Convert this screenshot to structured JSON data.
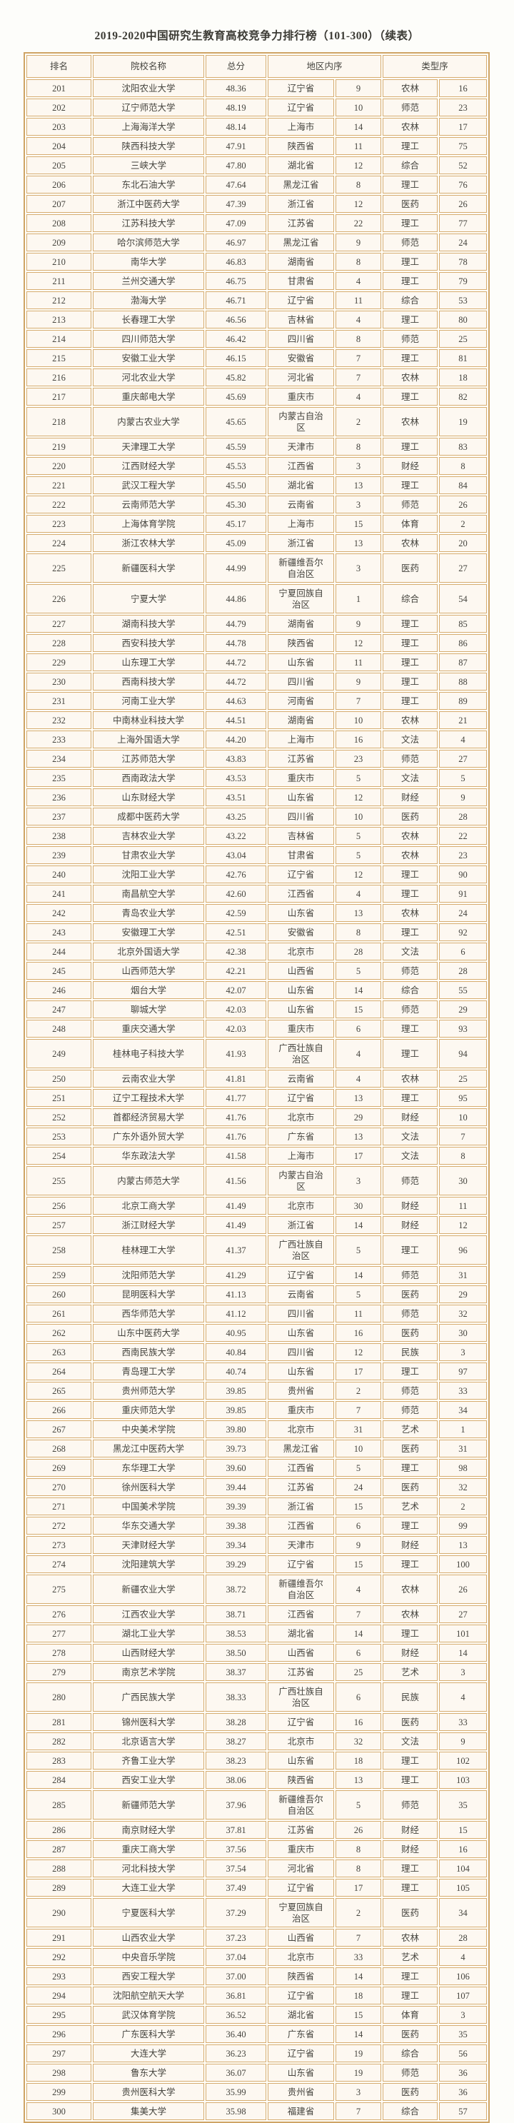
{
  "title": "2019-2020中国研究生教育高校竞争力排行榜（101-300）（续表）",
  "colors": {
    "table_border": "#cfa465",
    "cell_border": "#d6ac70",
    "cell_background": "#fdf8f1",
    "text": "#45443e"
  },
  "header": {
    "rank": "排名",
    "name": "院校名称",
    "score": "总分",
    "region_order": "地区内序",
    "type_order": "类型序"
  },
  "rows": [
    {
      "rank": "201",
      "name": "沈阳农业大学",
      "score": "48.36",
      "region": "辽宁省",
      "region_rank": "9",
      "type": "农林",
      "type_rank": "16"
    },
    {
      "rank": "202",
      "name": "辽宁师范大学",
      "score": "48.19",
      "region": "辽宁省",
      "region_rank": "10",
      "type": "师范",
      "type_rank": "23"
    },
    {
      "rank": "203",
      "name": "上海海洋大学",
      "score": "48.14",
      "region": "上海市",
      "region_rank": "14",
      "type": "农林",
      "type_rank": "17"
    },
    {
      "rank": "204",
      "name": "陕西科技大学",
      "score": "47.91",
      "region": "陕西省",
      "region_rank": "11",
      "type": "理工",
      "type_rank": "75"
    },
    {
      "rank": "205",
      "name": "三峡大学",
      "score": "47.80",
      "region": "湖北省",
      "region_rank": "12",
      "type": "综合",
      "type_rank": "52"
    },
    {
      "rank": "206",
      "name": "东北石油大学",
      "score": "47.64",
      "region": "黑龙江省",
      "region_rank": "8",
      "type": "理工",
      "type_rank": "76"
    },
    {
      "rank": "207",
      "name": "浙江中医药大学",
      "score": "47.39",
      "region": "浙江省",
      "region_rank": "12",
      "type": "医药",
      "type_rank": "26"
    },
    {
      "rank": "208",
      "name": "江苏科技大学",
      "score": "47.09",
      "region": "江苏省",
      "region_rank": "22",
      "type": "理工",
      "type_rank": "77"
    },
    {
      "rank": "209",
      "name": "哈尔滨师范大学",
      "score": "46.97",
      "region": "黑龙江省",
      "region_rank": "9",
      "type": "师范",
      "type_rank": "24"
    },
    {
      "rank": "210",
      "name": "南华大学",
      "score": "46.83",
      "region": "湖南省",
      "region_rank": "8",
      "type": "理工",
      "type_rank": "78"
    },
    {
      "rank": "211",
      "name": "兰州交通大学",
      "score": "46.75",
      "region": "甘肃省",
      "region_rank": "4",
      "type": "理工",
      "type_rank": "79"
    },
    {
      "rank": "212",
      "name": "渤海大学",
      "score": "46.71",
      "region": "辽宁省",
      "region_rank": "11",
      "type": "综合",
      "type_rank": "53"
    },
    {
      "rank": "213",
      "name": "长春理工大学",
      "score": "46.56",
      "region": "吉林省",
      "region_rank": "4",
      "type": "理工",
      "type_rank": "80"
    },
    {
      "rank": "214",
      "name": "四川师范大学",
      "score": "46.42",
      "region": "四川省",
      "region_rank": "8",
      "type": "师范",
      "type_rank": "25"
    },
    {
      "rank": "215",
      "name": "安徽工业大学",
      "score": "46.15",
      "region": "安徽省",
      "region_rank": "7",
      "type": "理工",
      "type_rank": "81"
    },
    {
      "rank": "216",
      "name": "河北农业大学",
      "score": "45.82",
      "region": "河北省",
      "region_rank": "7",
      "type": "农林",
      "type_rank": "18"
    },
    {
      "rank": "217",
      "name": "重庆邮电大学",
      "score": "45.69",
      "region": "重庆市",
      "region_rank": "4",
      "type": "理工",
      "type_rank": "82"
    },
    {
      "rank": "218",
      "name": "内蒙古农业大学",
      "score": "45.65",
      "region": "内蒙古自治区",
      "region_rank": "2",
      "type": "农林",
      "type_rank": "19"
    },
    {
      "rank": "219",
      "name": "天津理工大学",
      "score": "45.59",
      "region": "天津市",
      "region_rank": "8",
      "type": "理工",
      "type_rank": "83"
    },
    {
      "rank": "220",
      "name": "江西财经大学",
      "score": "45.53",
      "region": "江西省",
      "region_rank": "3",
      "type": "财经",
      "type_rank": "8"
    },
    {
      "rank": "221",
      "name": "武汉工程大学",
      "score": "45.50",
      "region": "湖北省",
      "region_rank": "13",
      "type": "理工",
      "type_rank": "84"
    },
    {
      "rank": "222",
      "name": "云南师范大学",
      "score": "45.30",
      "region": "云南省",
      "region_rank": "3",
      "type": "师范",
      "type_rank": "26"
    },
    {
      "rank": "223",
      "name": "上海体育学院",
      "score": "45.17",
      "region": "上海市",
      "region_rank": "15",
      "type": "体育",
      "type_rank": "2"
    },
    {
      "rank": "224",
      "name": "浙江农林大学",
      "score": "45.09",
      "region": "浙江省",
      "region_rank": "13",
      "type": "农林",
      "type_rank": "20"
    },
    {
      "rank": "225",
      "name": "新疆医科大学",
      "score": "44.99",
      "region": "新疆维吾尔自治区",
      "region_rank": "3",
      "type": "医药",
      "type_rank": "27"
    },
    {
      "rank": "226",
      "name": "宁夏大学",
      "score": "44.86",
      "region": "宁夏回族自治区",
      "region_rank": "1",
      "type": "综合",
      "type_rank": "54"
    },
    {
      "rank": "227",
      "name": "湖南科技大学",
      "score": "44.79",
      "region": "湖南省",
      "region_rank": "9",
      "type": "理工",
      "type_rank": "85"
    },
    {
      "rank": "228",
      "name": "西安科技大学",
      "score": "44.78",
      "region": "陕西省",
      "region_rank": "12",
      "type": "理工",
      "type_rank": "86"
    },
    {
      "rank": "229",
      "name": "山东理工大学",
      "score": "44.72",
      "region": "山东省",
      "region_rank": "11",
      "type": "理工",
      "type_rank": "87"
    },
    {
      "rank": "230",
      "name": "西南科技大学",
      "score": "44.72",
      "region": "四川省",
      "region_rank": "9",
      "type": "理工",
      "type_rank": "88"
    },
    {
      "rank": "231",
      "name": "河南工业大学",
      "score": "44.63",
      "region": "河南省",
      "region_rank": "7",
      "type": "理工",
      "type_rank": "89"
    },
    {
      "rank": "232",
      "name": "中南林业科技大学",
      "score": "44.51",
      "region": "湖南省",
      "region_rank": "10",
      "type": "农林",
      "type_rank": "21"
    },
    {
      "rank": "233",
      "name": "上海外国语大学",
      "score": "44.20",
      "region": "上海市",
      "region_rank": "16",
      "type": "文法",
      "type_rank": "4"
    },
    {
      "rank": "234",
      "name": "江苏师范大学",
      "score": "43.83",
      "region": "江苏省",
      "region_rank": "23",
      "type": "师范",
      "type_rank": "27"
    },
    {
      "rank": "235",
      "name": "西南政法大学",
      "score": "43.53",
      "region": "重庆市",
      "region_rank": "5",
      "type": "文法",
      "type_rank": "5"
    },
    {
      "rank": "236",
      "name": "山东财经大学",
      "score": "43.51",
      "region": "山东省",
      "region_rank": "12",
      "type": "财经",
      "type_rank": "9"
    },
    {
      "rank": "237",
      "name": "成都中医药大学",
      "score": "43.25",
      "region": "四川省",
      "region_rank": "10",
      "type": "医药",
      "type_rank": "28"
    },
    {
      "rank": "238",
      "name": "吉林农业大学",
      "score": "43.22",
      "region": "吉林省",
      "region_rank": "5",
      "type": "农林",
      "type_rank": "22"
    },
    {
      "rank": "239",
      "name": "甘肃农业大学",
      "score": "43.04",
      "region": "甘肃省",
      "region_rank": "5",
      "type": "农林",
      "type_rank": "23"
    },
    {
      "rank": "240",
      "name": "沈阳工业大学",
      "score": "42.76",
      "region": "辽宁省",
      "region_rank": "12",
      "type": "理工",
      "type_rank": "90"
    },
    {
      "rank": "241",
      "name": "南昌航空大学",
      "score": "42.60",
      "region": "江西省",
      "region_rank": "4",
      "type": "理工",
      "type_rank": "91"
    },
    {
      "rank": "242",
      "name": "青岛农业大学",
      "score": "42.59",
      "region": "山东省",
      "region_rank": "13",
      "type": "农林",
      "type_rank": "24"
    },
    {
      "rank": "243",
      "name": "安徽理工大学",
      "score": "42.51",
      "region": "安徽省",
      "region_rank": "8",
      "type": "理工",
      "type_rank": "92"
    },
    {
      "rank": "244",
      "name": "北京外国语大学",
      "score": "42.38",
      "region": "北京市",
      "region_rank": "28",
      "type": "文法",
      "type_rank": "6"
    },
    {
      "rank": "245",
      "name": "山西师范大学",
      "score": "42.21",
      "region": "山西省",
      "region_rank": "5",
      "type": "师范",
      "type_rank": "28"
    },
    {
      "rank": "246",
      "name": "烟台大学",
      "score": "42.07",
      "region": "山东省",
      "region_rank": "14",
      "type": "综合",
      "type_rank": "55"
    },
    {
      "rank": "247",
      "name": "聊城大学",
      "score": "42.03",
      "region": "山东省",
      "region_rank": "15",
      "type": "师范",
      "type_rank": "29"
    },
    {
      "rank": "248",
      "name": "重庆交通大学",
      "score": "42.03",
      "region": "重庆市",
      "region_rank": "6",
      "type": "理工",
      "type_rank": "93"
    },
    {
      "rank": "249",
      "name": "桂林电子科技大学",
      "score": "41.93",
      "region": "广西壮族自治区",
      "region_rank": "4",
      "type": "理工",
      "type_rank": "94"
    },
    {
      "rank": "250",
      "name": "云南农业大学",
      "score": "41.81",
      "region": "云南省",
      "region_rank": "4",
      "type": "农林",
      "type_rank": "25"
    },
    {
      "rank": "251",
      "name": "辽宁工程技术大学",
      "score": "41.77",
      "region": "辽宁省",
      "region_rank": "13",
      "type": "理工",
      "type_rank": "95"
    },
    {
      "rank": "252",
      "name": "首都经济贸易大学",
      "score": "41.76",
      "region": "北京市",
      "region_rank": "29",
      "type": "财经",
      "type_rank": "10"
    },
    {
      "rank": "253",
      "name": "广东外语外贸大学",
      "score": "41.76",
      "region": "广东省",
      "region_rank": "13",
      "type": "文法",
      "type_rank": "7"
    },
    {
      "rank": "254",
      "name": "华东政法大学",
      "score": "41.58",
      "region": "上海市",
      "region_rank": "17",
      "type": "文法",
      "type_rank": "8"
    },
    {
      "rank": "255",
      "name": "内蒙古师范大学",
      "score": "41.56",
      "region": "内蒙古自治区",
      "region_rank": "3",
      "type": "师范",
      "type_rank": "30"
    },
    {
      "rank": "256",
      "name": "北京工商大学",
      "score": "41.49",
      "region": "北京市",
      "region_rank": "30",
      "type": "财经",
      "type_rank": "11"
    },
    {
      "rank": "257",
      "name": "浙江财经大学",
      "score": "41.49",
      "region": "浙江省",
      "region_rank": "14",
      "type": "财经",
      "type_rank": "12"
    },
    {
      "rank": "258",
      "name": "桂林理工大学",
      "score": "41.37",
      "region": "广西壮族自治区",
      "region_rank": "5",
      "type": "理工",
      "type_rank": "96"
    },
    {
      "rank": "259",
      "name": "沈阳师范大学",
      "score": "41.29",
      "region": "辽宁省",
      "region_rank": "14",
      "type": "师范",
      "type_rank": "31"
    },
    {
      "rank": "260",
      "name": "昆明医科大学",
      "score": "41.13",
      "region": "云南省",
      "region_rank": "5",
      "type": "医药",
      "type_rank": "29"
    },
    {
      "rank": "261",
      "name": "西华师范大学",
      "score": "41.12",
      "region": "四川省",
      "region_rank": "11",
      "type": "师范",
      "type_rank": "32"
    },
    {
      "rank": "262",
      "name": "山东中医药大学",
      "score": "40.95",
      "region": "山东省",
      "region_rank": "16",
      "type": "医药",
      "type_rank": "30"
    },
    {
      "rank": "263",
      "name": "西南民族大学",
      "score": "40.84",
      "region": "四川省",
      "region_rank": "12",
      "type": "民族",
      "type_rank": "3"
    },
    {
      "rank": "264",
      "name": "青岛理工大学",
      "score": "40.74",
      "region": "山东省",
      "region_rank": "17",
      "type": "理工",
      "type_rank": "97"
    },
    {
      "rank": "265",
      "name": "贵州师范大学",
      "score": "39.85",
      "region": "贵州省",
      "region_rank": "2",
      "type": "师范",
      "type_rank": "33"
    },
    {
      "rank": "266",
      "name": "重庆师范大学",
      "score": "39.85",
      "region": "重庆市",
      "region_rank": "7",
      "type": "师范",
      "type_rank": "34"
    },
    {
      "rank": "267",
      "name": "中央美术学院",
      "score": "39.80",
      "region": "北京市",
      "region_rank": "31",
      "type": "艺术",
      "type_rank": "1"
    },
    {
      "rank": "268",
      "name": "黑龙江中医药大学",
      "score": "39.73",
      "region": "黑龙江省",
      "region_rank": "10",
      "type": "医药",
      "type_rank": "31"
    },
    {
      "rank": "269",
      "name": "东华理工大学",
      "score": "39.60",
      "region": "江西省",
      "region_rank": "5",
      "type": "理工",
      "type_rank": "98"
    },
    {
      "rank": "270",
      "name": "徐州医科大学",
      "score": "39.44",
      "region": "江苏省",
      "region_rank": "24",
      "type": "医药",
      "type_rank": "32"
    },
    {
      "rank": "271",
      "name": "中国美术学院",
      "score": "39.39",
      "region": "浙江省",
      "region_rank": "15",
      "type": "艺术",
      "type_rank": "2"
    },
    {
      "rank": "272",
      "name": "华东交通大学",
      "score": "39.38",
      "region": "江西省",
      "region_rank": "6",
      "type": "理工",
      "type_rank": "99"
    },
    {
      "rank": "273",
      "name": "天津财经大学",
      "score": "39.34",
      "region": "天津市",
      "region_rank": "9",
      "type": "财经",
      "type_rank": "13"
    },
    {
      "rank": "274",
      "name": "沈阳建筑大学",
      "score": "39.29",
      "region": "辽宁省",
      "region_rank": "15",
      "type": "理工",
      "type_rank": "100"
    },
    {
      "rank": "275",
      "name": "新疆农业大学",
      "score": "38.72",
      "region": "新疆维吾尔自治区",
      "region_rank": "4",
      "type": "农林",
      "type_rank": "26"
    },
    {
      "rank": "276",
      "name": "江西农业大学",
      "score": "38.71",
      "region": "江西省",
      "region_rank": "7",
      "type": "农林",
      "type_rank": "27"
    },
    {
      "rank": "277",
      "name": "湖北工业大学",
      "score": "38.53",
      "region": "湖北省",
      "region_rank": "14",
      "type": "理工",
      "type_rank": "101"
    },
    {
      "rank": "278",
      "name": "山西财经大学",
      "score": "38.50",
      "region": "山西省",
      "region_rank": "6",
      "type": "财经",
      "type_rank": "14"
    },
    {
      "rank": "279",
      "name": "南京艺术学院",
      "score": "38.37",
      "region": "江苏省",
      "region_rank": "25",
      "type": "艺术",
      "type_rank": "3"
    },
    {
      "rank": "280",
      "name": "广西民族大学",
      "score": "38.33",
      "region": "广西壮族自治区",
      "region_rank": "6",
      "type": "民族",
      "type_rank": "4"
    },
    {
      "rank": "281",
      "name": "锦州医科大学",
      "score": "38.28",
      "region": "辽宁省",
      "region_rank": "16",
      "type": "医药",
      "type_rank": "33"
    },
    {
      "rank": "282",
      "name": "北京语言大学",
      "score": "38.27",
      "region": "北京市",
      "region_rank": "32",
      "type": "文法",
      "type_rank": "9"
    },
    {
      "rank": "283",
      "name": "齐鲁工业大学",
      "score": "38.23",
      "region": "山东省",
      "region_rank": "18",
      "type": "理工",
      "type_rank": "102"
    },
    {
      "rank": "284",
      "name": "西安工业大学",
      "score": "38.06",
      "region": "陕西省",
      "region_rank": "13",
      "type": "理工",
      "type_rank": "103"
    },
    {
      "rank": "285",
      "name": "新疆师范大学",
      "score": "37.96",
      "region": "新疆维吾尔自治区",
      "region_rank": "5",
      "type": "师范",
      "type_rank": "35"
    },
    {
      "rank": "286",
      "name": "南京财经大学",
      "score": "37.81",
      "region": "江苏省",
      "region_rank": "26",
      "type": "财经",
      "type_rank": "15"
    },
    {
      "rank": "287",
      "name": "重庆工商大学",
      "score": "37.56",
      "region": "重庆市",
      "region_rank": "8",
      "type": "财经",
      "type_rank": "16"
    },
    {
      "rank": "288",
      "name": "河北科技大学",
      "score": "37.54",
      "region": "河北省",
      "region_rank": "8",
      "type": "理工",
      "type_rank": "104"
    },
    {
      "rank": "289",
      "name": "大连工业大学",
      "score": "37.49",
      "region": "辽宁省",
      "region_rank": "17",
      "type": "理工",
      "type_rank": "105"
    },
    {
      "rank": "290",
      "name": "宁夏医科大学",
      "score": "37.29",
      "region": "宁夏回族自治区",
      "region_rank": "2",
      "type": "医药",
      "type_rank": "34"
    },
    {
      "rank": "291",
      "name": "山西农业大学",
      "score": "37.23",
      "region": "山西省",
      "region_rank": "7",
      "type": "农林",
      "type_rank": "28"
    },
    {
      "rank": "292",
      "name": "中央音乐学院",
      "score": "37.04",
      "region": "北京市",
      "region_rank": "33",
      "type": "艺术",
      "type_rank": "4"
    },
    {
      "rank": "293",
      "name": "西安工程大学",
      "score": "37.00",
      "region": "陕西省",
      "region_rank": "14",
      "type": "理工",
      "type_rank": "106"
    },
    {
      "rank": "294",
      "name": "沈阳航空航天大学",
      "score": "36.81",
      "region": "辽宁省",
      "region_rank": "18",
      "type": "理工",
      "type_rank": "107"
    },
    {
      "rank": "295",
      "name": "武汉体育学院",
      "score": "36.52",
      "region": "湖北省",
      "region_rank": "15",
      "type": "体育",
      "type_rank": "3"
    },
    {
      "rank": "296",
      "name": "广东医科大学",
      "score": "36.40",
      "region": "广东省",
      "region_rank": "14",
      "type": "医药",
      "type_rank": "35"
    },
    {
      "rank": "297",
      "name": "大连大学",
      "score": "36.23",
      "region": "辽宁省",
      "region_rank": "19",
      "type": "综合",
      "type_rank": "56"
    },
    {
      "rank": "298",
      "name": "鲁东大学",
      "score": "36.07",
      "region": "山东省",
      "region_rank": "19",
      "type": "师范",
      "type_rank": "36"
    },
    {
      "rank": "299",
      "name": "贵州医科大学",
      "score": "35.99",
      "region": "贵州省",
      "region_rank": "3",
      "type": "医药",
      "type_rank": "36"
    },
    {
      "rank": "300",
      "name": "集美大学",
      "score": "35.98",
      "region": "福建省",
      "region_rank": "7",
      "type": "综合",
      "type_rank": "57"
    }
  ]
}
